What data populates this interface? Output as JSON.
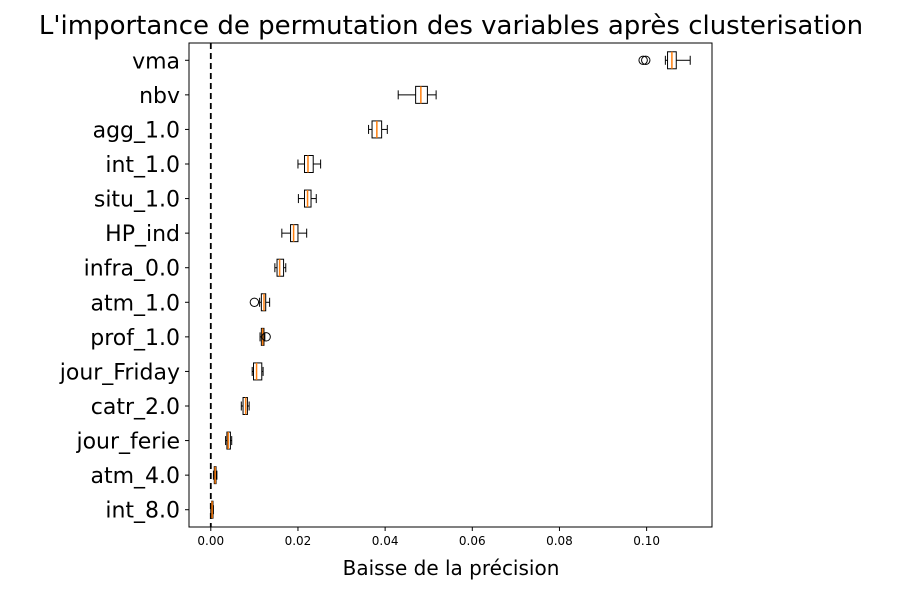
{
  "chart_data": {
    "type": "boxplot",
    "orientation": "horizontal",
    "title": "L'importance de permutation des variables après clusterisation",
    "xlabel": "Baisse de la précision",
    "ylabel": "",
    "xlim": [
      -0.005,
      0.115
    ],
    "xticks": [
      0.0,
      0.02,
      0.04,
      0.06,
      0.08,
      0.1
    ],
    "xtick_labels": [
      "0.00",
      "0.02",
      "0.04",
      "0.06",
      "0.08",
      "0.10"
    ],
    "grid": false,
    "reference_line": {
      "x": 0.0,
      "style": "dashed",
      "color": "#000000"
    },
    "box_face_color": "#ffffff",
    "box_edge_color": "#000000",
    "median_color": "#ff7f0e",
    "categories": [
      "vma",
      "nbv",
      "agg_1.0",
      "int_1.0",
      "situ_1.0",
      "HP_ind",
      "infra_0.0",
      "atm_1.0",
      "prof_1.0",
      "jour_Friday",
      "catr_2.0",
      "jour_ferie",
      "atm_4.0",
      "int_8.0"
    ],
    "boxes": [
      {
        "label": "vma",
        "whislo": 0.1043,
        "q1": 0.1048,
        "median": 0.1058,
        "q3": 0.1068,
        "whishi": 0.11,
        "fliers": [
          0.0992,
          0.0998
        ]
      },
      {
        "label": "nbv",
        "whislo": 0.043,
        "q1": 0.047,
        "median": 0.0482,
        "q3": 0.0497,
        "whishi": 0.0517,
        "fliers": []
      },
      {
        "label": "agg_1.0",
        "whislo": 0.0362,
        "q1": 0.037,
        "median": 0.0381,
        "q3": 0.0392,
        "whishi": 0.0405,
        "fliers": []
      },
      {
        "label": "int_1.0",
        "whislo": 0.02,
        "q1": 0.0215,
        "median": 0.0223,
        "q3": 0.0235,
        "whishi": 0.0252,
        "fliers": []
      },
      {
        "label": "situ_1.0",
        "whislo": 0.0201,
        "q1": 0.0215,
        "median": 0.0222,
        "q3": 0.023,
        "whishi": 0.0242,
        "fliers": []
      },
      {
        "label": "HP_ind",
        "whislo": 0.0163,
        "q1": 0.0183,
        "median": 0.019,
        "q3": 0.02,
        "whishi": 0.022,
        "fliers": []
      },
      {
        "label": "infra_0.0",
        "whislo": 0.0147,
        "q1": 0.0152,
        "median": 0.0158,
        "q3": 0.0167,
        "whishi": 0.0172,
        "fliers": []
      },
      {
        "label": "atm_1.0",
        "whislo": 0.0112,
        "q1": 0.0116,
        "median": 0.0122,
        "q3": 0.0126,
        "whishi": 0.0135,
        "fliers": [
          0.01
        ]
      },
      {
        "label": "prof_1.0",
        "whislo": 0.0113,
        "q1": 0.0116,
        "median": 0.0119,
        "q3": 0.0122,
        "whishi": 0.0124,
        "fliers": [
          0.0127
        ]
      },
      {
        "label": "jour_Friday",
        "whislo": 0.0095,
        "q1": 0.0098,
        "median": 0.0105,
        "q3": 0.0117,
        "whishi": 0.012,
        "fliers": []
      },
      {
        "label": "catr_2.0",
        "whislo": 0.007,
        "q1": 0.0074,
        "median": 0.008,
        "q3": 0.0084,
        "whishi": 0.0088,
        "fliers": []
      },
      {
        "label": "jour_ferie",
        "whislo": 0.0034,
        "q1": 0.0037,
        "median": 0.004,
        "q3": 0.0045,
        "whishi": 0.0048,
        "fliers": []
      },
      {
        "label": "atm_4.0",
        "whislo": 0.0006,
        "q1": 0.0008,
        "median": 0.001,
        "q3": 0.0012,
        "whishi": 0.0014,
        "fliers": []
      },
      {
        "label": "int_8.0",
        "whislo": 0.0,
        "q1": 0.0002,
        "median": 0.0003,
        "q3": 0.0005,
        "whishi": 0.0006,
        "fliers": []
      }
    ]
  }
}
